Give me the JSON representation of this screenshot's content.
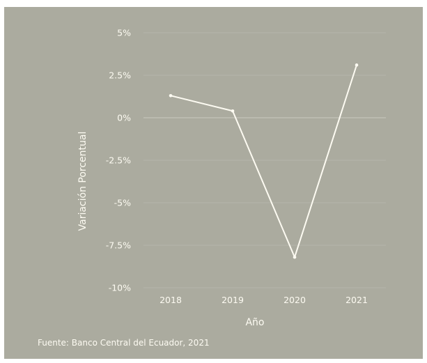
{
  "chart_data": {
    "type": "line",
    "title": "",
    "xlabel": "Año",
    "ylabel": "Variación Porcentual",
    "categories": [
      "2018",
      "2019",
      "2020",
      "2021"
    ],
    "series": [
      {
        "values": [
          1.3,
          0.4,
          -8.2,
          3.1
        ]
      }
    ],
    "ylim": [
      -10,
      5
    ],
    "yticks": [
      5,
      2.5,
      0,
      -2.5,
      -5,
      -7.5,
      -10
    ],
    "ytick_labels": [
      "5%",
      "2.5%",
      "0%",
      "-2.5%",
      "-5%",
      "-7.5%",
      "-10%"
    ],
    "grid": true,
    "legend": "none",
    "colors": {
      "background": "#abab9f",
      "line": "#fdfbf2",
      "grid": "#b6b6ab",
      "text": "#fdfbf2"
    },
    "source": "Fuente: Banco Central del Ecuador, 2021"
  }
}
